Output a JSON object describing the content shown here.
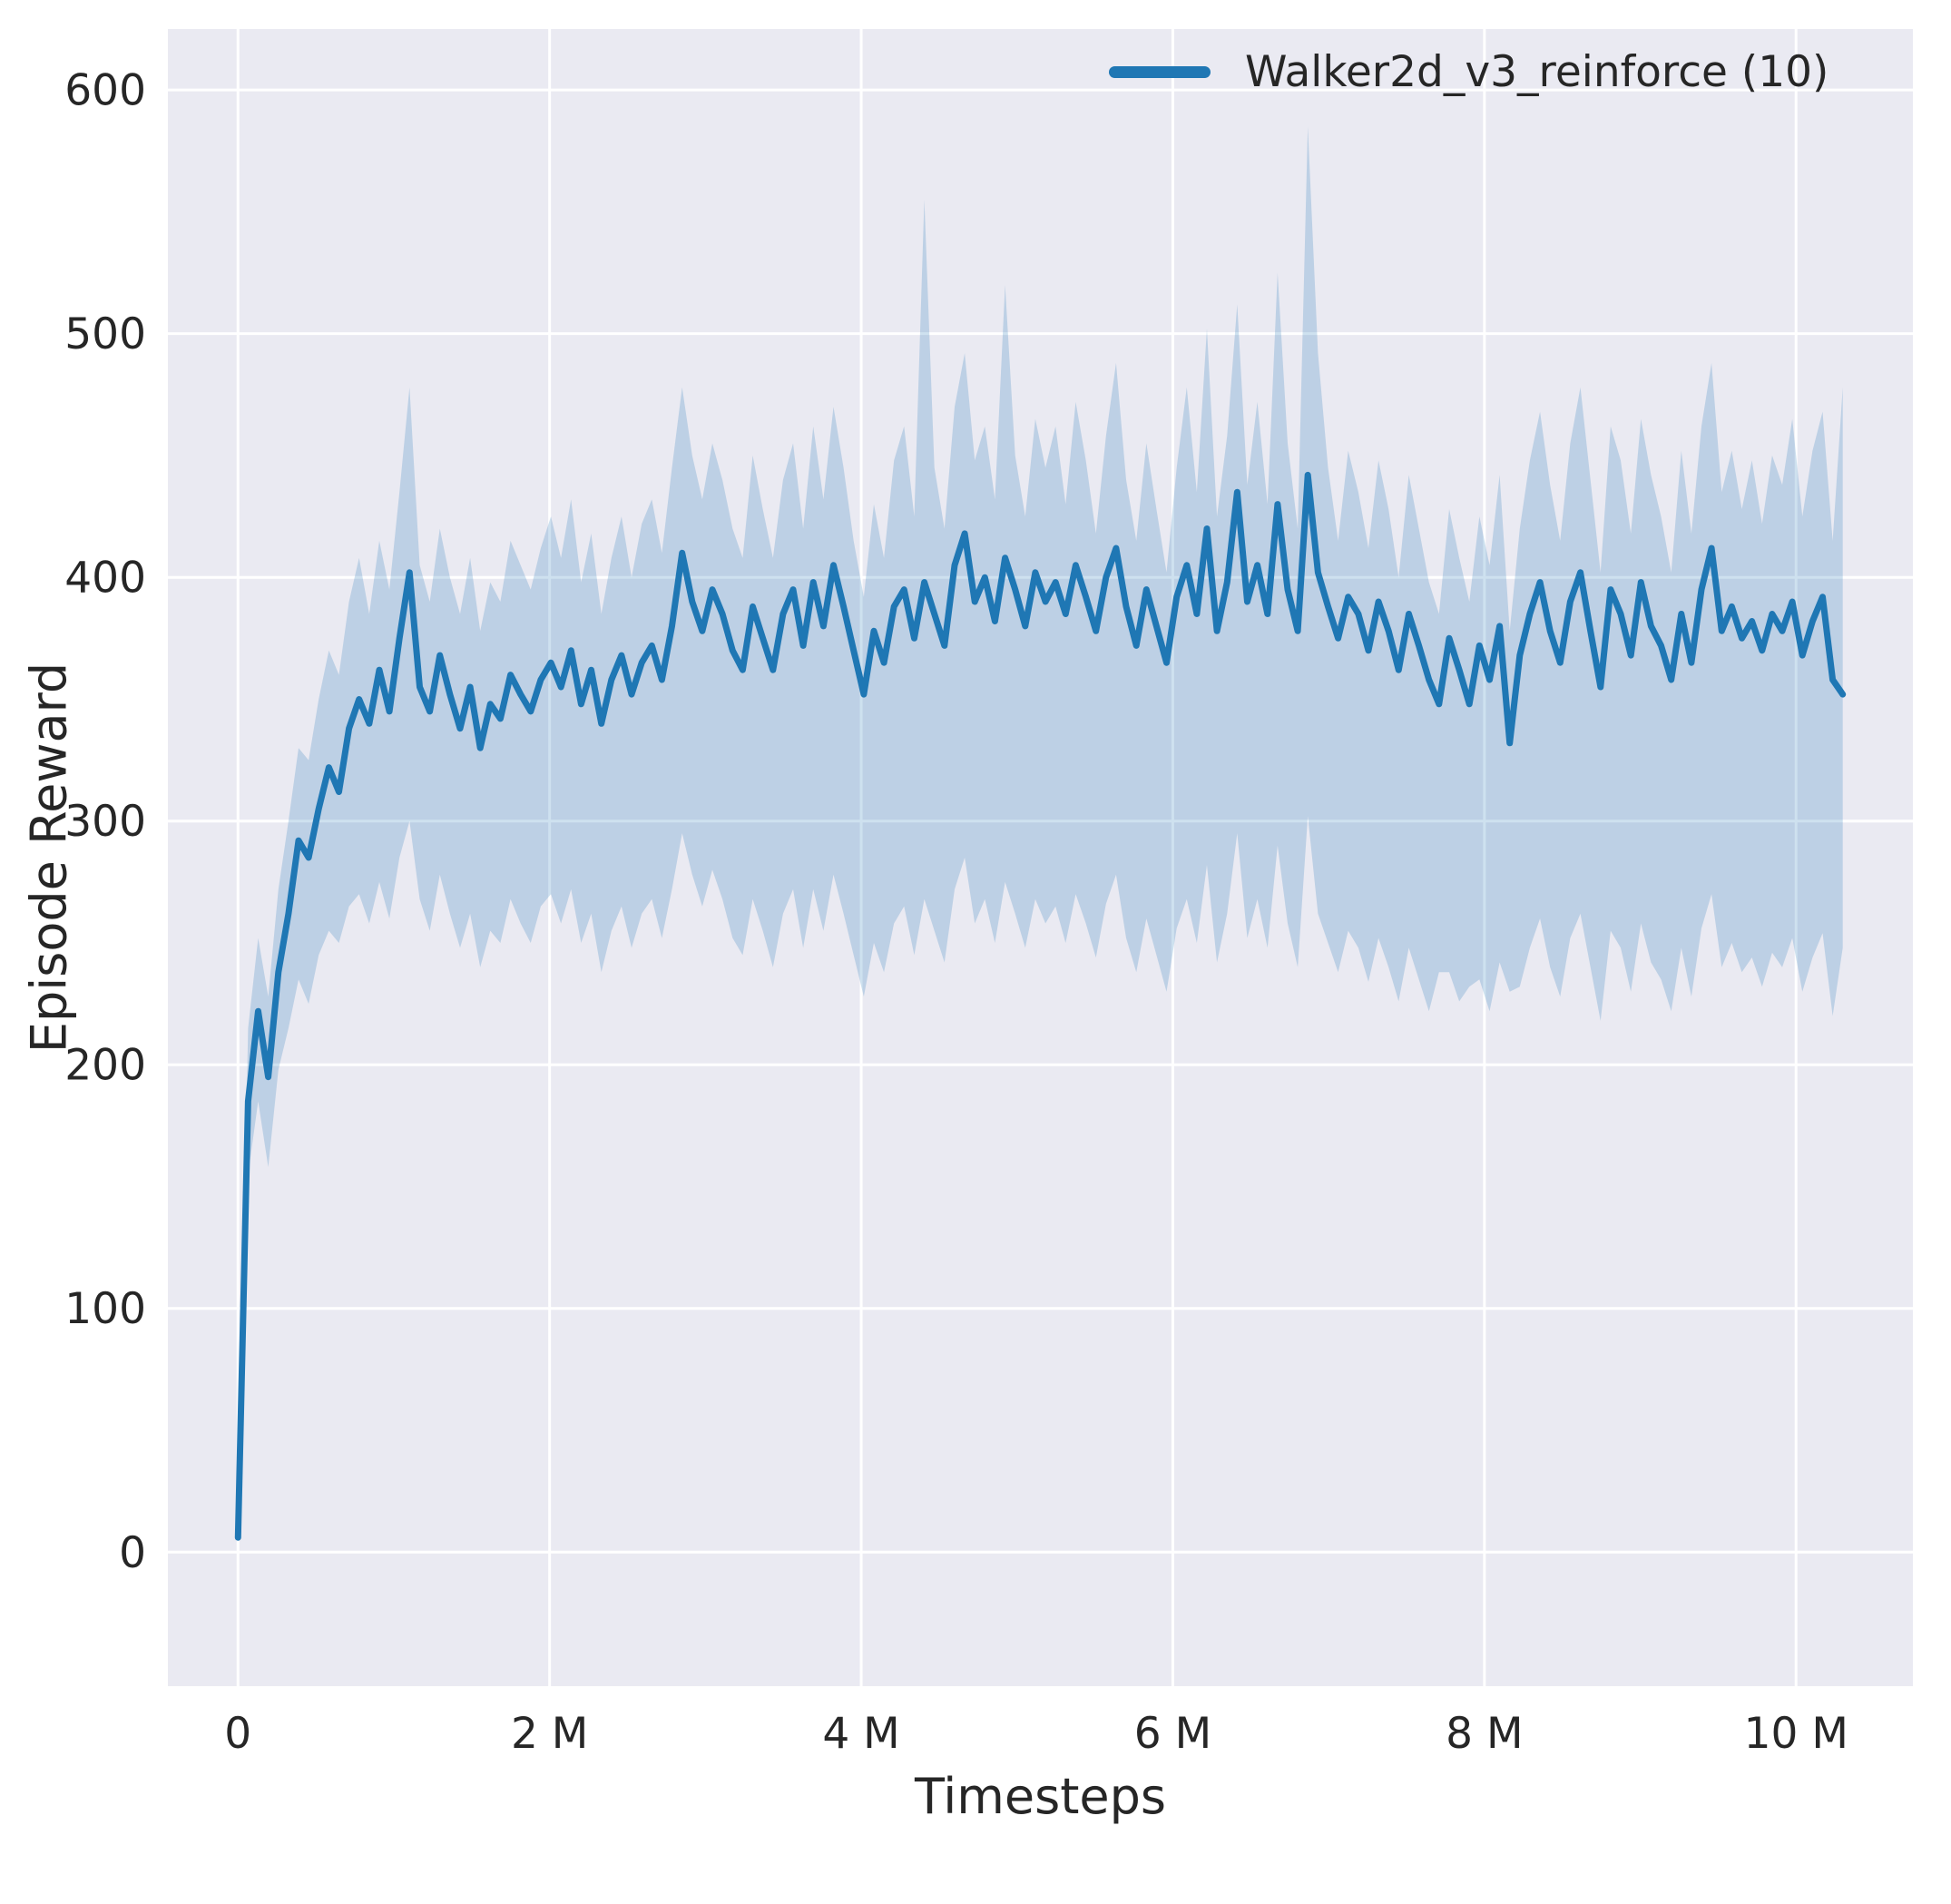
{
  "figure": {
    "background": "#ffffff",
    "plot_background": "#eaeaf2",
    "grid_color": "#ffffff",
    "line_color": "#1f77b4",
    "band_color": "#1f77b4",
    "band_opacity": 0.22,
    "text_color": "#262626"
  },
  "chart_data": {
    "type": "line",
    "title": "",
    "xlabel": "Timesteps",
    "ylabel": "Episode Reward",
    "grid": true,
    "legend_position": "top-right",
    "x_range": [
      0,
      10300000
    ],
    "xlim": [
      -450000,
      10750000
    ],
    "ylim": [
      -55,
      625
    ],
    "x_tick_values": [
      0,
      2000000,
      4000000,
      6000000,
      8000000,
      10000000
    ],
    "x_tick_labels": [
      "0",
      "2 M",
      "4 M",
      "6 M",
      "8 M",
      "10 M"
    ],
    "y_tick_values": [
      0,
      100,
      200,
      300,
      400,
      500,
      600
    ],
    "y_tick_labels": [
      "0",
      "100",
      "200",
      "300",
      "400",
      "500",
      "600"
    ],
    "legend": {
      "entries": [
        {
          "label": "Walker2d_v3_reinforce (10)",
          "color": "#1f77b4"
        }
      ]
    },
    "series": [
      {
        "name": "Walker2d_v3_reinforce (10)",
        "mean": [
          6,
          185,
          222,
          195,
          238,
          262,
          292,
          285,
          305,
          322,
          312,
          338,
          350,
          340,
          362,
          345,
          375,
          402,
          355,
          345,
          368,
          352,
          338,
          355,
          330,
          348,
          342,
          360,
          352,
          345,
          358,
          365,
          355,
          370,
          348,
          362,
          340,
          358,
          368,
          352,
          365,
          372,
          358,
          380,
          410,
          390,
          378,
          395,
          385,
          370,
          362,
          388,
          375,
          362,
          385,
          395,
          372,
          398,
          380,
          405,
          388,
          370,
          352,
          378,
          365,
          388,
          395,
          375,
          398,
          385,
          372,
          405,
          418,
          390,
          400,
          382,
          408,
          395,
          380,
          402,
          390,
          398,
          385,
          405,
          392,
          378,
          400,
          412,
          388,
          372,
          395,
          380,
          365,
          392,
          405,
          385,
          420,
          378,
          398,
          435,
          390,
          405,
          385,
          430,
          395,
          378,
          442,
          402,
          388,
          375,
          392,
          385,
          370,
          390,
          378,
          362,
          385,
          372,
          358,
          348,
          375,
          362,
          348,
          372,
          358,
          380,
          332,
          368,
          385,
          398,
          378,
          365,
          390,
          402,
          378,
          355,
          395,
          385,
          368,
          398,
          380,
          372,
          358,
          385,
          365,
          395,
          412,
          378,
          388,
          375,
          382,
          370,
          385,
          378,
          390,
          368,
          382,
          392,
          358,
          352
        ],
        "lo": [
          4,
          155,
          185,
          158,
          198,
          215,
          235,
          225,
          245,
          255,
          250,
          265,
          270,
          258,
          275,
          260,
          285,
          300,
          268,
          255,
          278,
          262,
          248,
          262,
          240,
          255,
          250,
          268,
          258,
          250,
          265,
          270,
          258,
          272,
          250,
          262,
          238,
          255,
          265,
          248,
          262,
          268,
          252,
          272,
          295,
          278,
          265,
          280,
          268,
          252,
          245,
          268,
          255,
          240,
          262,
          272,
          248,
          272,
          255,
          278,
          262,
          245,
          228,
          250,
          238,
          258,
          265,
          245,
          268,
          255,
          242,
          272,
          285,
          258,
          268,
          250,
          275,
          262,
          248,
          268,
          258,
          265,
          250,
          270,
          258,
          244,
          266,
          278,
          252,
          238,
          260,
          245,
          230,
          256,
          268,
          250,
          282,
          242,
          262,
          295,
          252,
          268,
          248,
          290,
          258,
          240,
          302,
          262,
          250,
          238,
          255,
          248,
          234,
          252,
          240,
          226,
          248,
          235,
          222,
          238,
          238,
          226,
          232,
          235,
          222,
          242,
          230,
          232,
          248,
          260,
          240,
          228,
          252,
          262,
          240,
          218,
          255,
          248,
          230,
          258,
          242,
          235,
          222,
          248,
          228,
          256,
          270,
          240,
          250,
          238,
          244,
          232,
          246,
          240,
          252,
          230,
          244,
          254,
          220,
          248
        ],
        "hi": [
          8,
          215,
          252,
          228,
          272,
          300,
          330,
          325,
          350,
          370,
          360,
          390,
          408,
          385,
          415,
          395,
          435,
          478,
          405,
          390,
          420,
          400,
          385,
          408,
          378,
          398,
          390,
          415,
          405,
          395,
          412,
          425,
          408,
          432,
          398,
          418,
          385,
          408,
          425,
          400,
          422,
          432,
          410,
          445,
          478,
          450,
          432,
          455,
          440,
          420,
          408,
          450,
          428,
          408,
          440,
          455,
          420,
          462,
          432,
          470,
          445,
          415,
          392,
          430,
          408,
          448,
          462,
          425,
          555,
          445,
          420,
          470,
          492,
          448,
          462,
          432,
          520,
          450,
          425,
          465,
          445,
          462,
          430,
          472,
          448,
          418,
          458,
          488,
          440,
          415,
          455,
          428,
          402,
          445,
          478,
          435,
          502,
          425,
          458,
          512,
          438,
          472,
          430,
          525,
          455,
          420,
          585,
          492,
          445,
          415,
          452,
          435,
          412,
          448,
          428,
          400,
          442,
          420,
          398,
          385,
          428,
          408,
          390,
          425,
          405,
          442,
          378,
          420,
          448,
          468,
          438,
          415,
          455,
          478,
          440,
          402,
          462,
          448,
          418,
          465,
          442,
          425,
          402,
          452,
          418,
          462,
          488,
          435,
          452,
          428,
          448,
          422,
          450,
          438,
          465,
          425,
          452,
          468,
          415,
          478
        ]
      }
    ]
  }
}
